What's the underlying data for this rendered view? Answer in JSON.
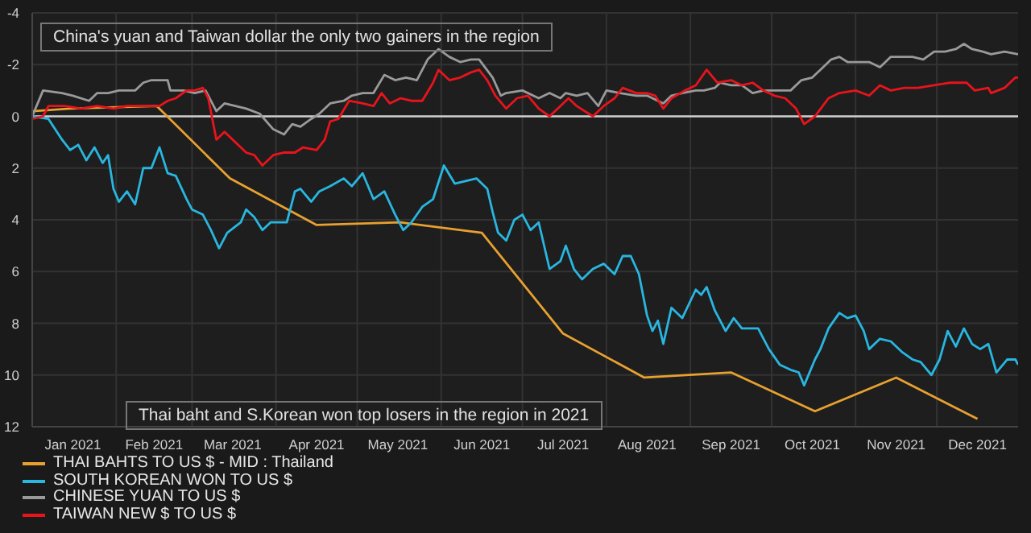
{
  "chart_data": {
    "type": "line",
    "annotations": [
      "China's yuan and Taiwan dollar the only two gainers in the region",
      "Thai baht and S.Korean won top losers in the region in 2021"
    ],
    "series": [
      {
        "name": "THAI BAHTS TO US $ - MID : Thailand",
        "color": "#e8a030",
        "x": [
          "2021-01-01",
          "2021-01-15",
          "2021-02-16",
          "2021-03-15",
          "2021-04-16",
          "2021-05-17",
          "2021-06-16",
          "2021-07-16",
          "2021-08-15",
          "2021-09-16",
          "2021-10-17",
          "2021-11-16",
          "2021-12-16"
        ],
        "values": [
          -0.2,
          -0.3,
          -0.4,
          2.4,
          4.2,
          4.1,
          4.5,
          8.4,
          10.1,
          9.9,
          11.4,
          10.1,
          11.7
        ]
      },
      {
        "name": "SOUTH KOREAN WON TO US $",
        "color": "#29b6e0",
        "x": [
          "2021-01-01",
          "2021-01-07",
          "2021-01-12",
          "2021-01-15",
          "2021-01-18",
          "2021-01-21",
          "2021-01-24",
          "2021-01-27",
          "2021-01-29",
          "2021-01-31",
          "2021-02-02",
          "2021-02-05",
          "2021-02-08",
          "2021-02-11",
          "2021-02-14",
          "2021-02-17",
          "2021-02-20",
          "2021-02-23",
          "2021-02-27",
          "2021-03-01",
          "2021-03-05",
          "2021-03-08",
          "2021-03-11",
          "2021-03-14",
          "2021-03-19",
          "2021-03-21",
          "2021-03-24",
          "2021-03-27",
          "2021-03-30",
          "2021-04-05",
          "2021-04-08",
          "2021-04-10",
          "2021-04-14",
          "2021-04-17",
          "2021-04-21",
          "2021-04-26",
          "2021-04-29",
          "2021-05-03",
          "2021-05-07",
          "2021-05-11",
          "2021-05-15",
          "2021-05-18",
          "2021-05-21",
          "2021-05-25",
          "2021-05-29",
          "2021-06-02",
          "2021-06-06",
          "2021-06-14",
          "2021-06-18",
          "2021-06-20",
          "2021-06-22",
          "2021-06-25",
          "2021-06-28",
          "2021-07-01",
          "2021-07-04",
          "2021-07-07",
          "2021-07-11",
          "2021-07-15",
          "2021-07-17",
          "2021-07-20",
          "2021-07-23",
          "2021-07-27",
          "2021-07-31",
          "2021-08-04",
          "2021-08-07",
          "2021-08-10",
          "2021-08-13",
          "2021-08-16",
          "2021-08-18",
          "2021-08-20",
          "2021-08-22",
          "2021-08-25",
          "2021-08-29",
          "2021-09-03",
          "2021-09-05",
          "2021-09-07",
          "2021-09-10",
          "2021-09-14",
          "2021-09-17",
          "2021-09-20",
          "2021-09-26",
          "2021-09-30",
          "2021-10-04",
          "2021-10-08",
          "2021-10-11",
          "2021-10-13",
          "2021-10-17",
          "2021-10-19",
          "2021-10-22",
          "2021-10-26",
          "2021-10-29",
          "2021-11-01",
          "2021-11-04",
          "2021-11-06",
          "2021-11-10",
          "2021-11-14",
          "2021-11-18",
          "2021-11-22",
          "2021-11-25",
          "2021-11-29",
          "2021-12-02",
          "2021-12-05",
          "2021-12-08",
          "2021-12-11",
          "2021-12-14",
          "2021-12-17",
          "2021-12-20",
          "2021-12-23",
          "2021-12-27",
          "2021-12-30",
          "2021-12-31"
        ],
        "values": [
          0,
          0.1,
          0.9,
          1.3,
          1.1,
          1.7,
          1.2,
          1.8,
          1.5,
          2.8,
          3.3,
          2.9,
          3.4,
          2.0,
          2.0,
          1.2,
          2.2,
          2.3,
          3.2,
          3.6,
          3.8,
          4.4,
          5.1,
          4.5,
          4.1,
          3.6,
          3.9,
          4.4,
          4.1,
          4.1,
          2.9,
          2.8,
          3.3,
          2.9,
          2.7,
          2.4,
          2.7,
          2.2,
          3.2,
          2.9,
          3.8,
          4.4,
          4.1,
          3.5,
          3.2,
          1.9,
          2.6,
          2.4,
          2.8,
          3.7,
          4.5,
          4.8,
          4.0,
          3.8,
          4.4,
          4.1,
          5.9,
          5.6,
          5.0,
          5.9,
          6.3,
          5.9,
          5.7,
          6.1,
          5.4,
          5.4,
          6.1,
          7.7,
          8.3,
          7.9,
          8.8,
          7.4,
          7.8,
          6.7,
          6.9,
          6.6,
          7.5,
          8.3,
          7.8,
          8.2,
          8.2,
          9.0,
          9.6,
          9.8,
          9.9,
          10.4,
          9.4,
          9.0,
          8.2,
          7.6,
          7.8,
          7.7,
          8.3,
          9.0,
          8.6,
          8.7,
          9.1,
          9.4,
          9.5,
          10.0,
          9.4,
          8.3,
          8.9,
          8.2,
          8.8,
          9.0,
          8.8,
          9.9,
          9.4,
          9.4,
          9.6
        ]
      },
      {
        "name": "CHINESE YUAN TO US $",
        "color": "#9a9a9a",
        "x": [
          "2021-01-01",
          "2021-01-05",
          "2021-01-12",
          "2021-01-16",
          "2021-01-22",
          "2021-01-25",
          "2021-01-29",
          "2021-02-02",
          "2021-02-08",
          "2021-02-11",
          "2021-02-14",
          "2021-02-20",
          "2021-02-21",
          "2021-02-26",
          "2021-03-02",
          "2021-03-06",
          "2021-03-10",
          "2021-03-13",
          "2021-03-17",
          "2021-03-21",
          "2021-03-26",
          "2021-03-31",
          "2021-04-04",
          "2021-04-07",
          "2021-04-10",
          "2021-04-14",
          "2021-04-17",
          "2021-04-21",
          "2021-04-26",
          "2021-04-29",
          "2021-05-03",
          "2021-05-07",
          "2021-05-11",
          "2021-05-15",
          "2021-05-19",
          "2021-05-23",
          "2021-05-27",
          "2021-05-31",
          "2021-06-04",
          "2021-06-08",
          "2021-06-12",
          "2021-06-15",
          "2021-06-20",
          "2021-06-23",
          "2021-06-25",
          "2021-07-01",
          "2021-07-07",
          "2021-07-11",
          "2021-07-15",
          "2021-07-17",
          "2021-07-21",
          "2021-07-25",
          "2021-07-29",
          "2021-08-01",
          "2021-08-06",
          "2021-08-12",
          "2021-08-16",
          "2021-08-22",
          "2021-08-25",
          "2021-08-29",
          "2021-09-03",
          "2021-09-06",
          "2021-09-10",
          "2021-09-12",
          "2021-09-16",
          "2021-09-20",
          "2021-09-24",
          "2021-09-28",
          "2021-10-02",
          "2021-10-08",
          "2021-10-12",
          "2021-10-16",
          "2021-10-20",
          "2021-10-23",
          "2021-10-26",
          "2021-10-29",
          "2021-11-02",
          "2021-11-06",
          "2021-11-10",
          "2021-11-14",
          "2021-11-18",
          "2021-11-22",
          "2021-11-26",
          "2021-11-30",
          "2021-12-04",
          "2021-12-08",
          "2021-12-11",
          "2021-12-14",
          "2021-12-18",
          "2021-12-21",
          "2021-12-26",
          "2021-12-31"
        ],
        "values": [
          0,
          -1.0,
          -0.9,
          -0.8,
          -0.6,
          -0.9,
          -0.9,
          -1.0,
          -1.0,
          -1.3,
          -1.4,
          -1.4,
          -1.0,
          -1.0,
          -0.9,
          -1.0,
          -0.2,
          -0.5,
          -0.4,
          -0.3,
          -0.1,
          0.5,
          0.7,
          0.3,
          0.4,
          0.1,
          -0.1,
          -0.5,
          -0.6,
          -0.8,
          -0.9,
          -0.9,
          -1.6,
          -1.4,
          -1.5,
          -1.4,
          -2.2,
          -2.6,
          -2.3,
          -2.1,
          -2.2,
          -2.2,
          -1.5,
          -0.8,
          -0.9,
          -1.0,
          -0.7,
          -0.9,
          -0.7,
          -0.9,
          -0.8,
          -0.9,
          -0.4,
          -1.0,
          -0.9,
          -0.8,
          -0.8,
          -0.5,
          -0.8,
          -0.9,
          -1.0,
          -1.0,
          -1.1,
          -1.3,
          -1.2,
          -1.2,
          -0.9,
          -1.0,
          -1.0,
          -1.0,
          -1.4,
          -1.5,
          -1.9,
          -2.2,
          -2.3,
          -2.1,
          -2.1,
          -2.1,
          -1.9,
          -2.3,
          -2.3,
          -2.3,
          -2.2,
          -2.5,
          -2.5,
          -2.6,
          -2.8,
          -2.6,
          -2.5,
          -2.4,
          -2.5,
          -2.4
        ]
      },
      {
        "name": "TAIWAN NEW $ TO US $",
        "color": "#e8141c",
        "x": [
          "2021-01-01",
          "2021-01-05",
          "2021-01-07",
          "2021-01-13",
          "2021-01-19",
          "2021-01-25",
          "2021-01-31",
          "2021-02-05",
          "2021-02-11",
          "2021-02-17",
          "2021-02-20",
          "2021-02-23",
          "2021-02-27",
          "2021-03-02",
          "2021-03-05",
          "2021-03-07",
          "2021-03-10",
          "2021-03-13",
          "2021-03-17",
          "2021-03-21",
          "2021-03-24",
          "2021-03-27",
          "2021-03-31",
          "2021-04-04",
          "2021-04-08",
          "2021-04-11",
          "2021-04-16",
          "2021-04-19",
          "2021-04-21",
          "2021-04-24",
          "2021-04-28",
          "2021-05-03",
          "2021-05-07",
          "2021-05-10",
          "2021-05-13",
          "2021-05-17",
          "2021-05-21",
          "2021-05-25",
          "2021-05-29",
          "2021-05-31",
          "2021-06-04",
          "2021-06-08",
          "2021-06-12",
          "2021-06-15",
          "2021-06-18",
          "2021-06-21",
          "2021-06-25",
          "2021-06-29",
          "2021-07-03",
          "2021-07-07",
          "2021-07-11",
          "2021-07-15",
          "2021-07-18",
          "2021-07-21",
          "2021-07-27",
          "2021-07-31",
          "2021-08-04",
          "2021-08-07",
          "2021-08-12",
          "2021-08-16",
          "2021-08-19",
          "2021-08-22",
          "2021-08-25",
          "2021-08-30",
          "2021-09-03",
          "2021-09-07",
          "2021-09-11",
          "2021-09-16",
          "2021-09-20",
          "2021-09-24",
          "2021-09-28",
          "2021-10-02",
          "2021-10-06",
          "2021-10-10",
          "2021-10-13",
          "2021-10-17",
          "2021-10-22",
          "2021-10-26",
          "2021-11-01",
          "2021-11-06",
          "2021-11-10",
          "2021-11-14",
          "2021-11-19",
          "2021-11-24",
          "2021-11-30",
          "2021-12-06",
          "2021-12-12",
          "2021-12-15",
          "2021-12-20",
          "2021-12-21",
          "2021-12-26",
          "2021-12-30",
          "2021-12-31"
        ],
        "values": [
          0.1,
          0,
          -0.4,
          -0.4,
          -0.3,
          -0.4,
          -0.3,
          -0.4,
          -0.4,
          -0.4,
          -0.6,
          -0.7,
          -1.0,
          -1.0,
          -1.1,
          -0.7,
          0.9,
          0.6,
          1.0,
          1.4,
          1.5,
          1.9,
          1.5,
          1.4,
          1.4,
          1.2,
          1.3,
          0.9,
          0.2,
          0.1,
          -0.6,
          -0.5,
          -0.4,
          -0.9,
          -0.5,
          -0.7,
          -0.6,
          -0.6,
          -1.3,
          -1.8,
          -1.4,
          -1.5,
          -1.7,
          -1.8,
          -1.4,
          -0.8,
          -0.3,
          -0.7,
          -0.8,
          -0.3,
          0,
          -0.4,
          -0.7,
          -0.4,
          0,
          -0.4,
          -0.7,
          -1.1,
          -0.9,
          -0.9,
          -0.8,
          -0.3,
          -0.7,
          -1.0,
          -1.2,
          -1.8,
          -1.3,
          -1.4,
          -1.2,
          -1.3,
          -1.0,
          -0.8,
          -0.7,
          -0.3,
          0.3,
          0,
          -0.7,
          -0.9,
          -1.0,
          -0.8,
          -1.2,
          -1.0,
          -1.1,
          -1.1,
          -1.2,
          -1.3,
          -1.3,
          -1.0,
          -1.1,
          -0.9,
          -1.1,
          -1.5,
          -1.5
        ]
      }
    ],
    "xlim": [
      "2021-01-01",
      "2021-12-31"
    ],
    "xticks": [
      {
        "value": "2021-01-16",
        "label": "Jan 2021"
      },
      {
        "value": "2021-02-01",
        "label": null
      },
      {
        "value": "2021-02-15",
        "label": "Feb 2021"
      },
      {
        "value": "2021-03-01",
        "label": null
      },
      {
        "value": "2021-03-16",
        "label": "Mar 2021"
      },
      {
        "value": "2021-04-01",
        "label": null
      },
      {
        "value": "2021-04-16",
        "label": "Apr 2021"
      },
      {
        "value": "2021-05-01",
        "label": null
      },
      {
        "value": "2021-05-16",
        "label": "May 2021"
      },
      {
        "value": "2021-06-01",
        "label": null
      },
      {
        "value": "2021-06-16",
        "label": "Jun 2021"
      },
      {
        "value": "2021-07-01",
        "label": null
      },
      {
        "value": "2021-07-16",
        "label": "Jul 2021"
      },
      {
        "value": "2021-08-01",
        "label": null
      },
      {
        "value": "2021-08-16",
        "label": "Aug 2021"
      },
      {
        "value": "2021-09-01",
        "label": null
      },
      {
        "value": "2021-09-16",
        "label": "Sep 2021"
      },
      {
        "value": "2021-10-01",
        "label": null
      },
      {
        "value": "2021-10-16",
        "label": "Oct 2021"
      },
      {
        "value": "2021-11-01",
        "label": null
      },
      {
        "value": "2021-11-16",
        "label": "Nov 2021"
      },
      {
        "value": "2021-12-01",
        "label": null
      },
      {
        "value": "2021-12-16",
        "label": "Dec 2021"
      }
    ],
    "ylim": [
      12,
      -4
    ],
    "yticks": [
      -4,
      -2,
      0,
      2,
      4,
      6,
      8,
      10,
      12
    ],
    "ref_lines": [
      {
        "axis": "y",
        "value": 0,
        "color": "#d0d0d0"
      }
    ],
    "grid": true,
    "legend": "bottom left",
    "marker": "none",
    "line_style": "solid"
  }
}
